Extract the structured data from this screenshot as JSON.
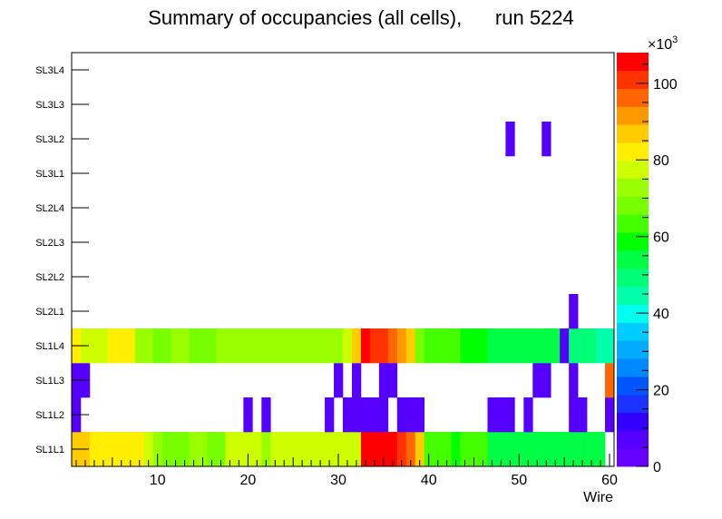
{
  "chart_data": {
    "type": "heatmap",
    "title": "Summary of occupancies (all cells),      run 5224",
    "xlabel": "Wire",
    "ylabel": "",
    "xlim": [
      0.5,
      60.5
    ],
    "x_ticks": [
      10,
      20,
      30,
      40,
      50,
      60
    ],
    "layers": [
      "SL1L1",
      "SL1L2",
      "SL1L3",
      "SL1L4",
      "SL2L1",
      "SL2L2",
      "SL2L3",
      "SL2L4",
      "SL3L1",
      "SL3L2",
      "SL3L3",
      "SL3L4"
    ],
    "z_range": [
      0,
      108
    ],
    "z_ticks": [
      0,
      20,
      40,
      60,
      80,
      100
    ],
    "z_multiplier_base": "×10",
    "z_multiplier_exp": "3",
    "z_unit": "thousands",
    "cells": {
      "SL1L1": [
        86,
        86,
        80,
        80,
        80,
        84,
        84,
        84,
        78,
        74,
        68,
        68,
        68,
        72,
        72,
        68,
        68,
        76,
        76,
        76,
        76,
        74,
        76,
        76,
        76,
        76,
        76,
        76,
        76,
        76,
        76,
        76,
        104,
        104,
        104,
        104,
        100,
        94,
        88,
        62,
        62,
        62,
        60,
        64,
        64,
        64,
        56,
        56,
        56,
        56,
        56,
        56,
        56,
        56,
        56,
        52,
        52,
        52,
        52,
        0
      ],
      "SL1L2": [
        6,
        0,
        0,
        0,
        0,
        0,
        0,
        0,
        0,
        0,
        0,
        0,
        0,
        0,
        0,
        0,
        0,
        0,
        0,
        6,
        0,
        6,
        0,
        0,
        0,
        0,
        0,
        0,
        6,
        0,
        6,
        6,
        6,
        6,
        6,
        0,
        6,
        6,
        6,
        0,
        0,
        0,
        0,
        0,
        0,
        0,
        6,
        6,
        6,
        0,
        6,
        0,
        0,
        0,
        0,
        6,
        6,
        0,
        0,
        6
      ],
      "SL1L3": [
        6,
        6,
        0,
        0,
        0,
        0,
        0,
        0,
        0,
        0,
        0,
        0,
        0,
        0,
        0,
        0,
        0,
        0,
        0,
        0,
        0,
        0,
        0,
        0,
        0,
        0,
        0,
        0,
        0,
        6,
        0,
        6,
        0,
        0,
        6,
        6,
        0,
        0,
        0,
        0,
        0,
        0,
        0,
        0,
        0,
        0,
        0,
        0,
        0,
        0,
        0,
        6,
        6,
        0,
        0,
        6,
        0,
        0,
        0,
        96
      ],
      "SL1L4": [
        84,
        78,
        78,
        78,
        80,
        80,
        80,
        74,
        74,
        70,
        70,
        74,
        74,
        70,
        70,
        70,
        72,
        72,
        72,
        72,
        72,
        72,
        72,
        72,
        72,
        72,
        72,
        72,
        72,
        72,
        78,
        86,
        104,
        100,
        100,
        96,
        90,
        86,
        68,
        62,
        62,
        62,
        62,
        58,
        58,
        58,
        54,
        54,
        56,
        52,
        52,
        52,
        52,
        52,
        6,
        50,
        50,
        50,
        46,
        46
      ],
      "SL2L1": [
        0,
        0,
        0,
        0,
        0,
        0,
        0,
        0,
        0,
        0,
        0,
        0,
        0,
        0,
        0,
        0,
        0,
        0,
        0,
        0,
        0,
        0,
        0,
        0,
        0,
        0,
        0,
        0,
        0,
        0,
        0,
        0,
        0,
        0,
        0,
        0,
        0,
        0,
        0,
        0,
        0,
        0,
        0,
        0,
        0,
        0,
        0,
        0,
        0,
        0,
        0,
        0,
        0,
        0,
        0,
        6,
        0,
        0,
        0,
        0
      ],
      "SL2L2": [
        0,
        0,
        0,
        0,
        0,
        0,
        0,
        0,
        0,
        0,
        0,
        0,
        0,
        0,
        0,
        0,
        0,
        0,
        0,
        0,
        0,
        0,
        0,
        0,
        0,
        0,
        0,
        0,
        0,
        0,
        0,
        0,
        0,
        0,
        0,
        0,
        0,
        0,
        0,
        0,
        0,
        0,
        0,
        0,
        0,
        0,
        0,
        0,
        0,
        0,
        0,
        0,
        0,
        0,
        0,
        0,
        0,
        0,
        0,
        0
      ],
      "SL2L3": [
        0,
        0,
        0,
        0,
        0,
        0,
        0,
        0,
        0,
        0,
        0,
        0,
        0,
        0,
        0,
        0,
        0,
        0,
        0,
        0,
        0,
        0,
        0,
        0,
        0,
        0,
        0,
        0,
        0,
        0,
        0,
        0,
        0,
        0,
        0,
        0,
        0,
        0,
        0,
        0,
        0,
        0,
        0,
        0,
        0,
        0,
        0,
        0,
        0,
        0,
        0,
        0,
        0,
        0,
        0,
        0,
        0,
        0,
        0,
        0
      ],
      "SL2L4": [
        0,
        0,
        0,
        0,
        0,
        0,
        0,
        0,
        0,
        0,
        0,
        0,
        0,
        0,
        0,
        0,
        0,
        0,
        0,
        0,
        0,
        0,
        0,
        0,
        0,
        0,
        0,
        0,
        0,
        0,
        0,
        0,
        0,
        0,
        0,
        0,
        0,
        0,
        0,
        0,
        0,
        0,
        0,
        0,
        0,
        0,
        0,
        0,
        0,
        0,
        0,
        0,
        0,
        0,
        0,
        0,
        0,
        0,
        0,
        0
      ],
      "SL3L1": [
        0,
        0,
        0,
        0,
        0,
        0,
        0,
        0,
        0,
        0,
        0,
        0,
        0,
        0,
        0,
        0,
        0,
        0,
        0,
        0,
        0,
        0,
        0,
        0,
        0,
        0,
        0,
        0,
        0,
        0,
        0,
        0,
        0,
        0,
        0,
        0,
        0,
        0,
        0,
        0,
        0,
        0,
        0,
        0,
        0,
        0,
        0,
        0,
        0,
        0,
        0,
        0,
        0,
        0,
        0,
        0,
        0,
        0,
        0,
        0
      ],
      "SL3L2": [
        0,
        0,
        0,
        0,
        0,
        0,
        0,
        0,
        0,
        0,
        0,
        0,
        0,
        0,
        0,
        0,
        0,
        0,
        0,
        0,
        0,
        0,
        0,
        0,
        0,
        0,
        0,
        0,
        0,
        0,
        0,
        0,
        0,
        0,
        0,
        0,
        0,
        0,
        0,
        0,
        0,
        0,
        0,
        0,
        0,
        0,
        0,
        0,
        6,
        0,
        0,
        0,
        6,
        0,
        0,
        0,
        0,
        0,
        0,
        0
      ],
      "SL3L3": [
        0,
        0,
        0,
        0,
        0,
        0,
        0,
        0,
        0,
        0,
        0,
        0,
        0,
        0,
        0,
        0,
        0,
        0,
        0,
        0,
        0,
        0,
        0,
        0,
        0,
        0,
        0,
        0,
        0,
        0,
        0,
        0,
        0,
        0,
        0,
        0,
        0,
        0,
        0,
        0,
        0,
        0,
        0,
        0,
        0,
        0,
        0,
        0,
        0,
        0,
        0,
        0,
        0,
        0,
        0,
        0,
        0,
        0,
        0,
        0
      ],
      "SL3L4": [
        0,
        0,
        0,
        0,
        0,
        0,
        0,
        0,
        0,
        0,
        0,
        0,
        0,
        0,
        0,
        0,
        0,
        0,
        0,
        0,
        0,
        0,
        0,
        0,
        0,
        0,
        0,
        0,
        0,
        0,
        0,
        0,
        0,
        0,
        0,
        0,
        0,
        0,
        0,
        0,
        0,
        0,
        0,
        0,
        0,
        0,
        0,
        0,
        0,
        0,
        0,
        0,
        0,
        0,
        0,
        0,
        0,
        0,
        0,
        0
      ]
    },
    "palette": [
      "#6600ff",
      "#5500ff",
      "#3300ff",
      "#1a33ff",
      "#0055ff",
      "#0088ff",
      "#00aaff",
      "#00ccff",
      "#00ffee",
      "#00ffaa",
      "#00ff77",
      "#00ff44",
      "#00ff00",
      "#44ff00",
      "#77ff00",
      "#99ff00",
      "#ccff00",
      "#ffee00",
      "#ffcc00",
      "#ff9900",
      "#ff6600",
      "#ff3300",
      "#ff0000"
    ]
  }
}
